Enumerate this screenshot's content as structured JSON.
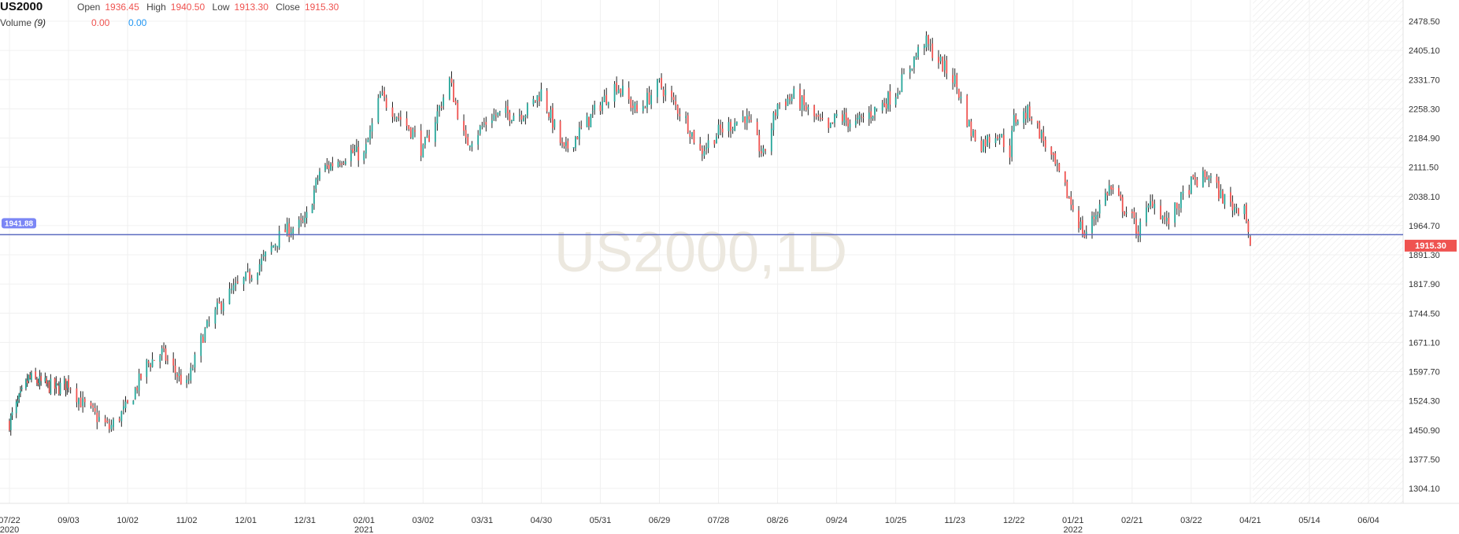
{
  "legend": {
    "symbol": "US2000",
    "open_label": "Open",
    "open": "1936.45",
    "high_label": "High",
    "high": "1940.50",
    "low_label": "Low",
    "low": "1913.30",
    "close_label": "Close",
    "close": "1915.30",
    "volume_label": "Volume",
    "volume_period": "(9)",
    "volume_a": "0.00",
    "volume_b": "0.00"
  },
  "watermark": "US2000,1D",
  "colors": {
    "up": "#26a69a",
    "down": "#ef5350",
    "wick": "#222222",
    "hline": "#5c6bc0",
    "hline_label_bg": "#7b86f5",
    "price_tag_bg": "#ef5350",
    "watermark": "#ece8df",
    "grid": "#f0f0f0",
    "future_hatch": "#e6e6e6"
  },
  "chart_data": {
    "type": "candlestick",
    "title": "US2000",
    "interval": "1D",
    "y_ticks": [
      "2478.50",
      "2405.10",
      "2331.70",
      "2258.30",
      "2184.90",
      "2111.50",
      "2038.10",
      "1964.70",
      "1891.30",
      "1817.90",
      "1744.50",
      "1671.10",
      "1597.70",
      "1524.30",
      "1450.90",
      "1377.50",
      "1304.10"
    ],
    "ylim": [
      1270,
      2515
    ],
    "x_ticks": [
      {
        "label": "07/22",
        "sub": "2020"
      },
      {
        "label": "09/03",
        "sub": ""
      },
      {
        "label": "10/02",
        "sub": ""
      },
      {
        "label": "11/02",
        "sub": ""
      },
      {
        "label": "12/01",
        "sub": ""
      },
      {
        "label": "12/31",
        "sub": ""
      },
      {
        "label": "02/01",
        "sub": "2021"
      },
      {
        "label": "03/02",
        "sub": ""
      },
      {
        "label": "03/31",
        "sub": ""
      },
      {
        "label": "04/30",
        "sub": ""
      },
      {
        "label": "05/31",
        "sub": ""
      },
      {
        "label": "06/29",
        "sub": ""
      },
      {
        "label": "07/28",
        "sub": ""
      },
      {
        "label": "08/26",
        "sub": ""
      },
      {
        "label": "09/24",
        "sub": ""
      },
      {
        "label": "10/25",
        "sub": ""
      },
      {
        "label": "11/23",
        "sub": ""
      },
      {
        "label": "12/22",
        "sub": ""
      },
      {
        "label": "01/21",
        "sub": "2022"
      },
      {
        "label": "02/21",
        "sub": ""
      },
      {
        "label": "03/22",
        "sub": ""
      },
      {
        "label": "04/21",
        "sub": ""
      },
      {
        "label": "05/14",
        "sub": ""
      },
      {
        "label": "06/04",
        "sub": ""
      }
    ],
    "horizontal_line": {
      "value": 1941.88,
      "label": "1941.88"
    },
    "last_price": {
      "value": 1915.3,
      "label": "1915.30"
    },
    "close_path": [
      [
        "07/22",
        1470
      ],
      [
        "08/05",
        1580
      ],
      [
        "08/25",
        1555
      ],
      [
        "09/03",
        1570
      ],
      [
        "09/10",
        1515
      ],
      [
        "09/23",
        1455
      ],
      [
        "10/02",
        1510
      ],
      [
        "10/12",
        1615
      ],
      [
        "10/20",
        1645
      ],
      [
        "10/28",
        1590
      ],
      [
        "11/02",
        1560
      ],
      [
        "11/10",
        1690
      ],
      [
        "11/20",
        1780
      ],
      [
        "12/01",
        1830
      ],
      [
        "12/10",
        1880
      ],
      [
        "12/20",
        1950
      ],
      [
        "12/31",
        1970
      ],
      [
        "01/08",
        2100
      ],
      [
        "01/25",
        2150
      ],
      [
        "02/01",
        2140
      ],
      [
        "02/09",
        2290
      ],
      [
        "02/25",
        2200
      ],
      [
        "03/02",
        2150
      ],
      [
        "03/15",
        2330
      ],
      [
        "03/23",
        2170
      ],
      [
        "04/05",
        2240
      ],
      [
        "04/22",
        2250
      ],
      [
        "04/30",
        2300
      ],
      [
        "05/12",
        2150
      ],
      [
        "05/31",
        2270
      ],
      [
        "06/08",
        2320
      ],
      [
        "06/18",
        2250
      ],
      [
        "06/29",
        2320
      ],
      [
        "07/12",
        2230
      ],
      [
        "07/19",
        2150
      ],
      [
        "07/28",
        2200
      ],
      [
        "08/10",
        2240
      ],
      [
        "08/19",
        2140
      ],
      [
        "08/26",
        2270
      ],
      [
        "09/03",
        2290
      ],
      [
        "09/20",
        2200
      ],
      [
        "09/24",
        2240
      ],
      [
        "10/04",
        2220
      ],
      [
        "10/18",
        2270
      ],
      [
        "10/25",
        2300
      ],
      [
        "11/08",
        2430
      ],
      [
        "11/18",
        2360
      ],
      [
        "11/23",
        2330
      ],
      [
        "12/01",
        2200
      ],
      [
        "12/06",
        2170
      ],
      [
        "12/14",
        2200
      ],
      [
        "12/20",
        2150
      ],
      [
        "12/22",
        2230
      ],
      [
        "12/30",
        2250
      ],
      [
        "01/06",
        2180
      ],
      [
        "01/21",
        2010
      ],
      [
        "01/27",
        1940
      ],
      [
        "02/09",
        2060
      ],
      [
        "02/21",
        1980
      ],
      [
        "02/24",
        1950
      ],
      [
        "03/03",
        2030
      ],
      [
        "03/10",
        1970
      ],
      [
        "03/22",
        2070
      ],
      [
        "03/31",
        2090
      ],
      [
        "04/06",
        2040
      ],
      [
        "04/13",
        2010
      ],
      [
        "04/18",
        2020
      ],
      [
        "04/21",
        1915.3
      ]
    ],
    "future_range": [
      "04/22",
      "06/04"
    ],
    "grid": true
  }
}
